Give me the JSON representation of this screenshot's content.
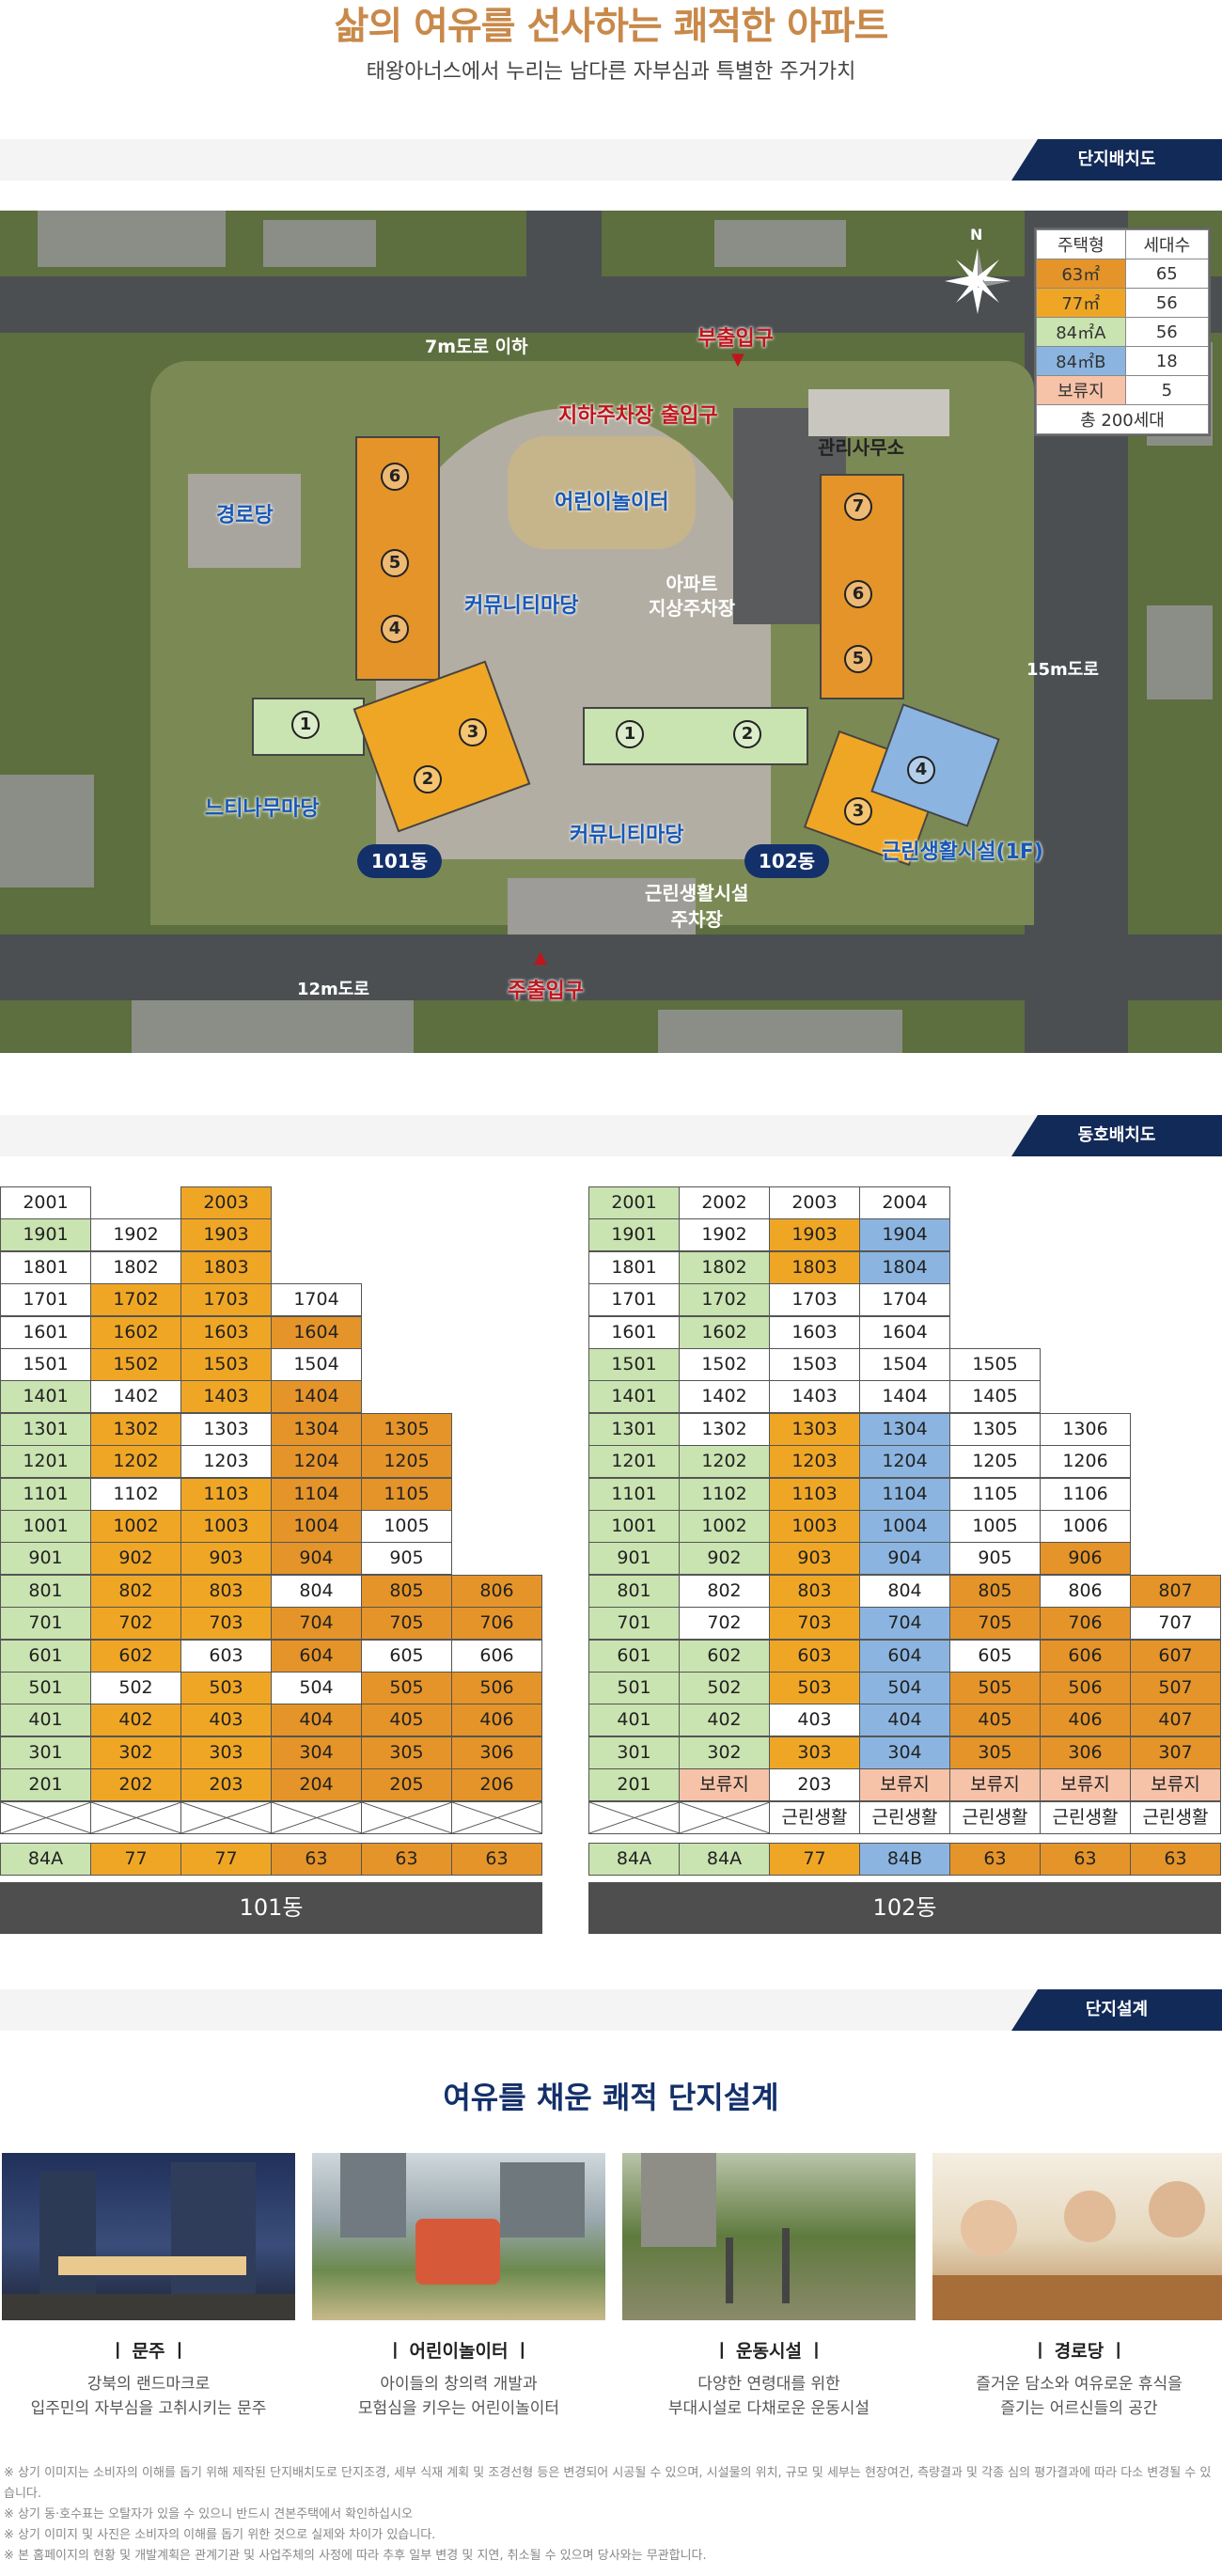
{
  "hero": {
    "title": "삶의 여유를 선사하는 쾌적한 아파트",
    "subtitle": "태왕아너스에서 누리는 남다른 자부심과 특별한 주거가치"
  },
  "sections": {
    "site_plan": "단지배치도",
    "unit_plan": "동호배치도",
    "design": "단지설계"
  },
  "site_plan": {
    "compass": "N",
    "labels": {
      "road_7m": "7m도로 이하",
      "sub_entrance": "부출입구",
      "parking_entrance": "지하주차장 출입구",
      "office": "관리사무소",
      "senior_center": "경로당",
      "playground": "어린이놀이터",
      "community_yard_1": "커뮤니티마당",
      "ground_parking": "아파트\n지상주차장",
      "road_15m": "15m도로",
      "zelkova_yard": "느티나무마당",
      "community_yard_2": "커뮤니티마당",
      "neighborhood_facility": "근린생활시설(1F)",
      "facility_parking": "근린생활시설\n주차장",
      "road_12m": "12m도로",
      "main_entrance": "주출입구",
      "bldg101": "101동",
      "bldg102": "102동"
    },
    "legend": {
      "headers": [
        "주택형",
        "세대수"
      ],
      "rows": [
        {
          "type": "63㎡",
          "count": "65",
          "color": "#e59429"
        },
        {
          "type": "77㎡",
          "count": "56",
          "color": "#f0a625"
        },
        {
          "type": "84㎡A",
          "count": "56",
          "color": "#c9e3b1"
        },
        {
          "type": "84㎡B",
          "count": "18",
          "color": "#8bb5e0"
        },
        {
          "type": "보류지",
          "count": "5",
          "color": "#f6c2a8"
        }
      ],
      "total": "총 200세대"
    }
  },
  "dong101": {
    "label": "101동",
    "types": [
      "84A",
      "77",
      "77",
      "63",
      "63",
      "63"
    ],
    "rows": [
      [
        "2001|w",
        "",
        "2003|o"
      ],
      [
        "1901|g",
        "1902|w",
        "1903|o"
      ],
      [
        "1801|w",
        "1802|w",
        "1803|o"
      ],
      [
        "1701|w",
        "1702|o",
        "1703|o",
        "1704|w"
      ],
      [
        "1601|w",
        "1602|o",
        "1603|o",
        "1604|d"
      ],
      [
        "1501|w",
        "1502|o",
        "1503|o",
        "1504|w"
      ],
      [
        "1401|g",
        "1402|w",
        "1403|o",
        "1404|d"
      ],
      [
        "1301|g",
        "1302|o",
        "1303|w",
        "1304|d",
        "1305|d"
      ],
      [
        "1201|g",
        "1202|o",
        "1203|w",
        "1204|d",
        "1205|d"
      ],
      [
        "1101|g",
        "1102|w",
        "1103|o",
        "1104|d",
        "1105|d"
      ],
      [
        "1001|g",
        "1002|o",
        "1003|o",
        "1004|d",
        "1005|w"
      ],
      [
        "901|g",
        "902|o",
        "903|o",
        "904|d",
        "905|w"
      ],
      [
        "801|g",
        "802|o",
        "803|o",
        "804|w",
        "805|d",
        "806|d"
      ],
      [
        "701|g",
        "702|o",
        "703|o",
        "704|d",
        "705|d",
        "706|d"
      ],
      [
        "601|g",
        "602|o",
        "603|w",
        "604|d",
        "605|w",
        "606|w"
      ],
      [
        "501|g",
        "502|w",
        "503|o",
        "504|w",
        "505|d",
        "506|d"
      ],
      [
        "401|g",
        "402|o",
        "403|o",
        "404|d",
        "405|d",
        "406|d"
      ],
      [
        "301|g",
        "302|o",
        "303|o",
        "304|d",
        "305|d",
        "306|d"
      ],
      [
        "201|g",
        "202|o",
        "203|o",
        "204|d",
        "205|d",
        "206|d"
      ]
    ]
  },
  "dong102": {
    "label": "102동",
    "types": [
      "84A",
      "84A",
      "77",
      "84B",
      "63",
      "63",
      "63"
    ],
    "rows": [
      [
        "2001|g",
        "2002|w",
        "2003|w",
        "2004|w"
      ],
      [
        "1901|g",
        "1902|w",
        "1903|o",
        "1904|b"
      ],
      [
        "1801|w",
        "1802|g",
        "1803|o",
        "1804|b"
      ],
      [
        "1701|w",
        "1702|g",
        "1703|w",
        "1704|w"
      ],
      [
        "1601|w",
        "1602|g",
        "1603|w",
        "1604|w"
      ],
      [
        "1501|g",
        "1502|w",
        "1503|w",
        "1504|w",
        "1505|w"
      ],
      [
        "1401|g",
        "1402|w",
        "1403|w",
        "1404|w",
        "1405|w"
      ],
      [
        "1301|g",
        "1302|w",
        "1303|o",
        "1304|b",
        "1305|w",
        "1306|w"
      ],
      [
        "1201|g",
        "1202|g",
        "1203|o",
        "1204|b",
        "1205|w",
        "1206|w"
      ],
      [
        "1101|g",
        "1102|g",
        "1103|o",
        "1104|b",
        "1105|w",
        "1106|w"
      ],
      [
        "1001|g",
        "1002|g",
        "1003|o",
        "1004|b",
        "1005|w",
        "1006|w"
      ],
      [
        "901|g",
        "902|g",
        "903|o",
        "904|b",
        "905|w",
        "906|d"
      ],
      [
        "801|g",
        "802|w",
        "803|o",
        "804|w",
        "805|d",
        "806|w",
        "807|d"
      ],
      [
        "701|g",
        "702|w",
        "703|o",
        "704|b",
        "705|d",
        "706|d",
        "707|w"
      ],
      [
        "601|g",
        "602|g",
        "603|o",
        "604|b",
        "605|w",
        "606|d",
        "607|d"
      ],
      [
        "501|g",
        "502|g",
        "503|o",
        "504|b",
        "505|d",
        "506|d",
        "507|d"
      ],
      [
        "401|g",
        "402|g",
        "403|w",
        "404|b",
        "405|d",
        "406|d",
        "407|d"
      ],
      [
        "301|g",
        "302|g",
        "303|o",
        "304|b",
        "305|d",
        "306|d",
        "307|d"
      ],
      [
        "201|g",
        "보류지|p",
        "203|w",
        "보류지|p",
        "보류지|p",
        "보류지|p",
        "보류지|p"
      ]
    ],
    "ground": [
      "",
      "",
      "근린생활",
      "근린생활",
      "근린생활",
      "근린생활",
      "근린생활"
    ]
  },
  "design": {
    "title": "여유를 채운 쾌적 단지설계",
    "cards": [
      {
        "title": "ㅣ 문주 ㅣ",
        "line1": "강북의 랜드마크로",
        "line2": "입주민의 자부심을 고취시키는 문주"
      },
      {
        "title": "ㅣ 어린이놀이터 ㅣ",
        "line1": "아이들의 창의력 개발과",
        "line2": "모험심을 키우는 어린이놀이터"
      },
      {
        "title": "ㅣ 운동시설 ㅣ",
        "line1": "다양한 연령대를 위한",
        "line2": "부대시설로 다채로운 운동시설"
      },
      {
        "title": "ㅣ 경로당 ㅣ",
        "line1": "즐거운 담소와 여유로운 휴식을",
        "line2": "즐기는 어르신들의 공간"
      }
    ]
  },
  "notes": [
    "※ 상기 이미지는 소비자의 이해를 돕기 위해 제작된 단지배치도로 단지조경, 세부 식재 계획 및 조경선형 등은 변경되어 시공될 수 있으며, 시설물의 위치, 규모 및 세부는 현장여건, 측량결과 및 각종 심의 평가결과에 따라 다소 변경될 수 있습니다.",
    "※ 상기 동·호수표는 오탈자가 있을 수 있으니 반드시 견본주택에서 확인하십시오",
    "※ 상기 이미지 및 사진은 소비자의 이해를 돕기 위한 것으로 실제와 차이가 있습니다.",
    "※ 본 홈페이지의 현황 및 개발계획은 관계기관 및 사업주체의 사정에 따라 추후 일부 변경 및 지연, 취소될 수 있으며 당사와는 무관합니다."
  ]
}
